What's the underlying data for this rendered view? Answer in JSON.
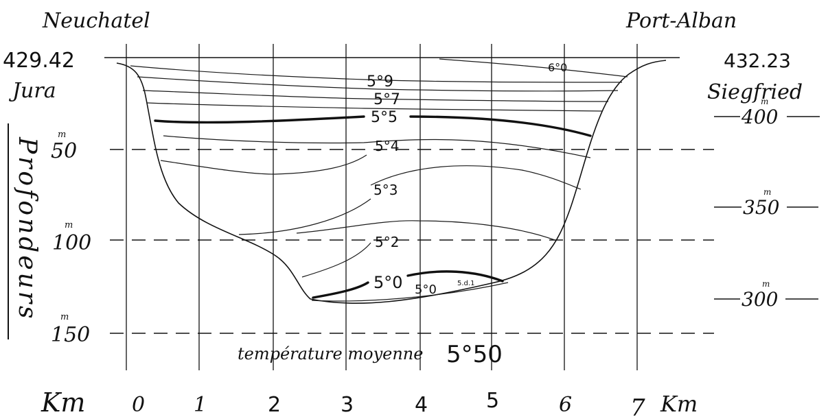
{
  "header": {
    "left_station": "Neuchatel",
    "right_station": "Port-Alban"
  },
  "left_scale": {
    "elevation": "429.42",
    "elevation_source": "Jura",
    "axis_title": "Profondeurs",
    "ticks": [
      {
        "label": "50",
        "unit": "m",
        "depth": 50
      },
      {
        "label": "100",
        "unit": "m",
        "depth": 100
      },
      {
        "label": "150",
        "unit": "m",
        "depth": 150
      }
    ]
  },
  "right_scale": {
    "elevation": "432.23",
    "elevation_source": "Siegfried",
    "ticks": [
      {
        "label": "400",
        "unit": "m",
        "altitude": 400
      },
      {
        "label": "350",
        "unit": "m",
        "altitude": 350
      },
      {
        "label": "300",
        "unit": "m",
        "altitude": 300
      }
    ]
  },
  "x_axis": {
    "unit_left": "Km",
    "unit_right": "Km",
    "ticks": [
      "0",
      "1",
      "2",
      "3",
      "4",
      "5",
      "6",
      "7"
    ]
  },
  "isotherm_labels": {
    "t60": "6°0",
    "t59": "5°9",
    "t57": "5°7",
    "t55": "5°5",
    "t54": "5°4",
    "t53": "5°3",
    "t52": "5°2",
    "t50": "5°0",
    "t50b": "5°0",
    "t4x": "5.d.1"
  },
  "caption": {
    "text": "température moyenne",
    "value": "5°50"
  }
}
